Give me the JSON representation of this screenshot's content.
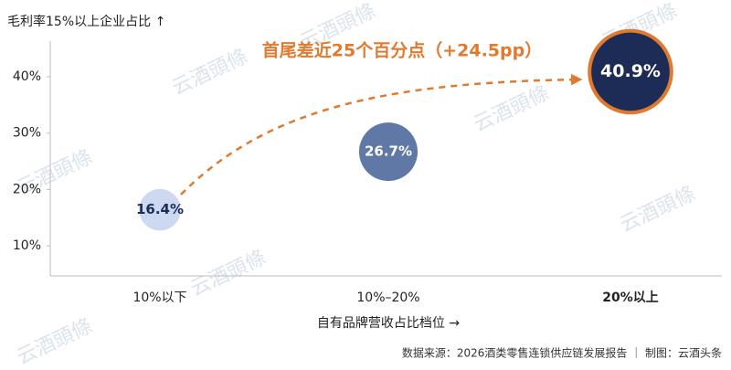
{
  "chart_data": {
    "type": "bubble",
    "y_label": "毛利率15%以上企业占比 ↑",
    "x_label": "自有品牌营收占比档位 →",
    "annotation": "首尾差近25个百分点（+24.5pp）",
    "source": "数据来源：2026酒类零售连锁供应链发展报告 ｜ 制图：云酒头条",
    "watermark": "云酒頭條",
    "categories": [
      "10%以下",
      "10%–20%",
      "20%以上"
    ],
    "values": [
      16.4,
      26.7,
      40.9
    ],
    "value_labels": [
      "16.4%",
      "26.7%",
      "40.9%"
    ],
    "colors": [
      "#cdd9f1",
      "#5f78a5",
      "#1d2b57"
    ],
    "highlight_color": "#e07a2e",
    "ylim": [
      5,
      46
    ],
    "yticks": [
      {
        "value": 10,
        "label": "10%"
      },
      {
        "value": 20,
        "label": "20%"
      },
      {
        "value": 30,
        "label": "30%"
      },
      {
        "value": 40,
        "label": "40%"
      }
    ]
  }
}
